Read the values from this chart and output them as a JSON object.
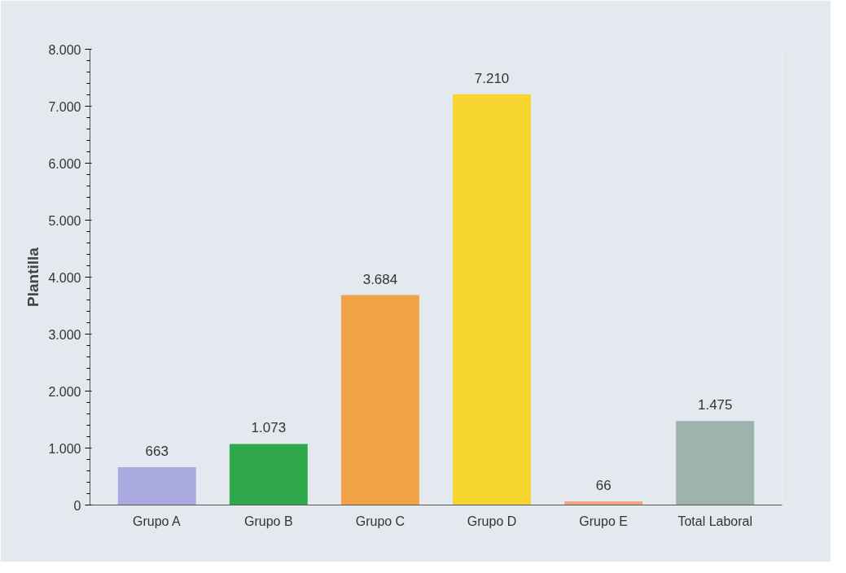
{
  "chart_data": {
    "type": "bar",
    "ylabel": "Plantilla",
    "categories": [
      "Grupo A",
      "Grupo B",
      "Grupo C",
      "Grupo D",
      "Grupo E",
      "Total Laboral"
    ],
    "values": [
      663,
      1073,
      3684,
      7210,
      66,
      1475
    ],
    "colors": [
      "#aaaae0",
      "#2fa84c",
      "#f0a245",
      "#f8d632",
      "#f0a585",
      "#9db3ab"
    ],
    "value_labels": [
      "663",
      "1.073",
      "3.684",
      "7.210",
      "66",
      "1.475"
    ],
    "ylim": [
      0,
      8000
    ],
    "yticks": [
      {
        "value": 0,
        "label": "0"
      },
      {
        "value": 1000,
        "label": "1.000"
      },
      {
        "value": 2000,
        "label": "2.000"
      },
      {
        "value": 3000,
        "label": "3.000"
      },
      {
        "value": 4000,
        "label": "4.000"
      },
      {
        "value": 5000,
        "label": "5.000"
      },
      {
        "value": 6000,
        "label": "6.000"
      },
      {
        "value": 7000,
        "label": "7.000"
      },
      {
        "value": 8000,
        "label": "8.000"
      }
    ],
    "grid": false
  }
}
